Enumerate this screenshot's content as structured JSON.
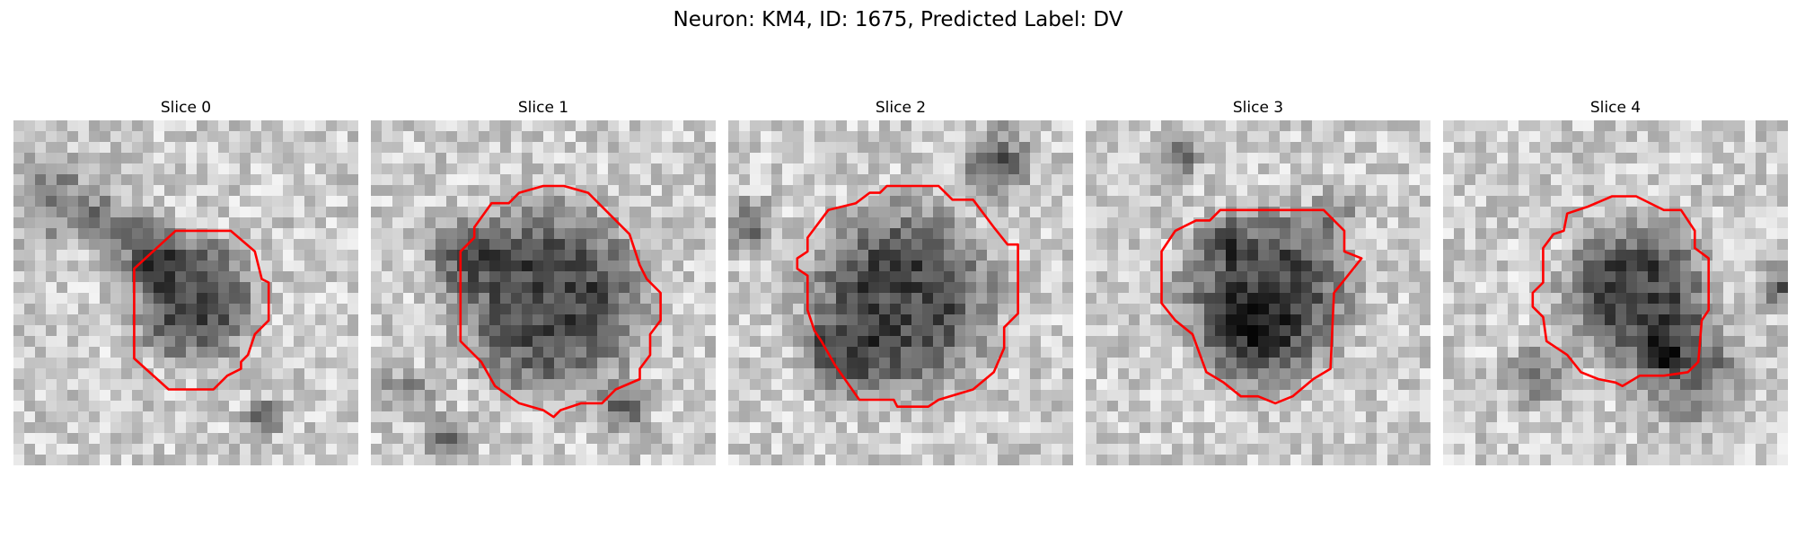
{
  "figure": {
    "suptitle": "Neuron: KM4, ID: 1675, Predicted Label: DV"
  },
  "colors": {
    "contour": "#ff0000",
    "background": "#ffffff"
  },
  "panels": [
    {
      "title": "Slice 0",
      "seed": 11,
      "blob_center": [
        0.52,
        0.52
      ],
      "blob_radius": 0.2,
      "contour": [
        [
          0.47,
          0.32
        ],
        [
          0.63,
          0.32
        ],
        [
          0.7,
          0.38
        ],
        [
          0.72,
          0.46
        ],
        [
          0.74,
          0.47
        ],
        [
          0.74,
          0.58
        ],
        [
          0.7,
          0.62
        ],
        [
          0.68,
          0.68
        ],
        [
          0.66,
          0.7
        ],
        [
          0.66,
          0.72
        ],
        [
          0.62,
          0.74
        ],
        [
          0.58,
          0.78
        ],
        [
          0.45,
          0.78
        ],
        [
          0.35,
          0.69
        ],
        [
          0.35,
          0.43
        ]
      ]
    },
    {
      "title": "Slice 1",
      "seed": 23,
      "blob_center": [
        0.52,
        0.52
      ],
      "blob_radius": 0.3,
      "contour": [
        [
          0.5,
          0.19
        ],
        [
          0.56,
          0.19
        ],
        [
          0.63,
          0.21
        ],
        [
          0.75,
          0.33
        ],
        [
          0.78,
          0.42
        ],
        [
          0.8,
          0.46
        ],
        [
          0.84,
          0.5
        ],
        [
          0.84,
          0.58
        ],
        [
          0.81,
          0.62
        ],
        [
          0.81,
          0.68
        ],
        [
          0.78,
          0.72
        ],
        [
          0.78,
          0.75
        ],
        [
          0.71,
          0.78
        ],
        [
          0.67,
          0.82
        ],
        [
          0.61,
          0.82
        ],
        [
          0.55,
          0.84
        ],
        [
          0.53,
          0.86
        ],
        [
          0.5,
          0.84
        ],
        [
          0.43,
          0.82
        ],
        [
          0.36,
          0.77
        ],
        [
          0.32,
          0.7
        ],
        [
          0.26,
          0.64
        ],
        [
          0.26,
          0.38
        ],
        [
          0.3,
          0.34
        ],
        [
          0.3,
          0.31
        ],
        [
          0.35,
          0.24
        ],
        [
          0.4,
          0.24
        ],
        [
          0.43,
          0.21
        ]
      ]
    },
    {
      "title": "Slice 2",
      "seed": 37,
      "blob_center": [
        0.5,
        0.52
      ],
      "blob_radius": 0.3,
      "contour": [
        [
          0.46,
          0.19
        ],
        [
          0.61,
          0.19
        ],
        [
          0.65,
          0.23
        ],
        [
          0.71,
          0.23
        ],
        [
          0.77,
          0.31
        ],
        [
          0.81,
          0.36
        ],
        [
          0.84,
          0.36
        ],
        [
          0.84,
          0.56
        ],
        [
          0.8,
          0.6
        ],
        [
          0.8,
          0.66
        ],
        [
          0.77,
          0.73
        ],
        [
          0.71,
          0.78
        ],
        [
          0.61,
          0.81
        ],
        [
          0.58,
          0.83
        ],
        [
          0.49,
          0.83
        ],
        [
          0.48,
          0.81
        ],
        [
          0.38,
          0.81
        ],
        [
          0.31,
          0.71
        ],
        [
          0.27,
          0.64
        ],
        [
          0.25,
          0.61
        ],
        [
          0.23,
          0.55
        ],
        [
          0.23,
          0.45
        ],
        [
          0.2,
          0.43
        ],
        [
          0.2,
          0.4
        ],
        [
          0.23,
          0.38
        ],
        [
          0.23,
          0.34
        ],
        [
          0.29,
          0.26
        ],
        [
          0.37,
          0.24
        ],
        [
          0.41,
          0.21
        ],
        [
          0.44,
          0.21
        ]
      ]
    },
    {
      "title": "Slice 3",
      "seed": 53,
      "blob_center": [
        0.52,
        0.5
      ],
      "blob_radius": 0.27,
      "contour": [
        [
          0.39,
          0.26
        ],
        [
          0.69,
          0.26
        ],
        [
          0.75,
          0.32
        ],
        [
          0.75,
          0.38
        ],
        [
          0.8,
          0.4
        ],
        [
          0.72,
          0.5
        ],
        [
          0.71,
          0.72
        ],
        [
          0.66,
          0.75
        ],
        [
          0.6,
          0.8
        ],
        [
          0.55,
          0.82
        ],
        [
          0.5,
          0.8
        ],
        [
          0.45,
          0.8
        ],
        [
          0.4,
          0.76
        ],
        [
          0.35,
          0.73
        ],
        [
          0.31,
          0.62
        ],
        [
          0.26,
          0.58
        ],
        [
          0.22,
          0.53
        ],
        [
          0.22,
          0.38
        ],
        [
          0.26,
          0.32
        ],
        [
          0.32,
          0.29
        ],
        [
          0.36,
          0.29
        ]
      ]
    },
    {
      "title": "Slice 4",
      "seed": 71,
      "blob_center": [
        0.56,
        0.5
      ],
      "blob_radius": 0.23,
      "contour": [
        [
          0.42,
          0.25
        ],
        [
          0.49,
          0.22
        ],
        [
          0.56,
          0.22
        ],
        [
          0.62,
          0.25
        ],
        [
          0.64,
          0.26
        ],
        [
          0.69,
          0.26
        ],
        [
          0.73,
          0.32
        ],
        [
          0.73,
          0.37
        ],
        [
          0.77,
          0.4
        ],
        [
          0.77,
          0.55
        ],
        [
          0.75,
          0.58
        ],
        [
          0.74,
          0.7
        ],
        [
          0.71,
          0.73
        ],
        [
          0.64,
          0.74
        ],
        [
          0.57,
          0.74
        ],
        [
          0.52,
          0.77
        ],
        [
          0.5,
          0.76
        ],
        [
          0.45,
          0.75
        ],
        [
          0.4,
          0.73
        ],
        [
          0.36,
          0.68
        ],
        [
          0.3,
          0.64
        ],
        [
          0.29,
          0.57
        ],
        [
          0.26,
          0.54
        ],
        [
          0.26,
          0.5
        ],
        [
          0.29,
          0.47
        ],
        [
          0.29,
          0.37
        ],
        [
          0.32,
          0.33
        ],
        [
          0.35,
          0.32
        ],
        [
          0.36,
          0.27
        ]
      ]
    }
  ]
}
